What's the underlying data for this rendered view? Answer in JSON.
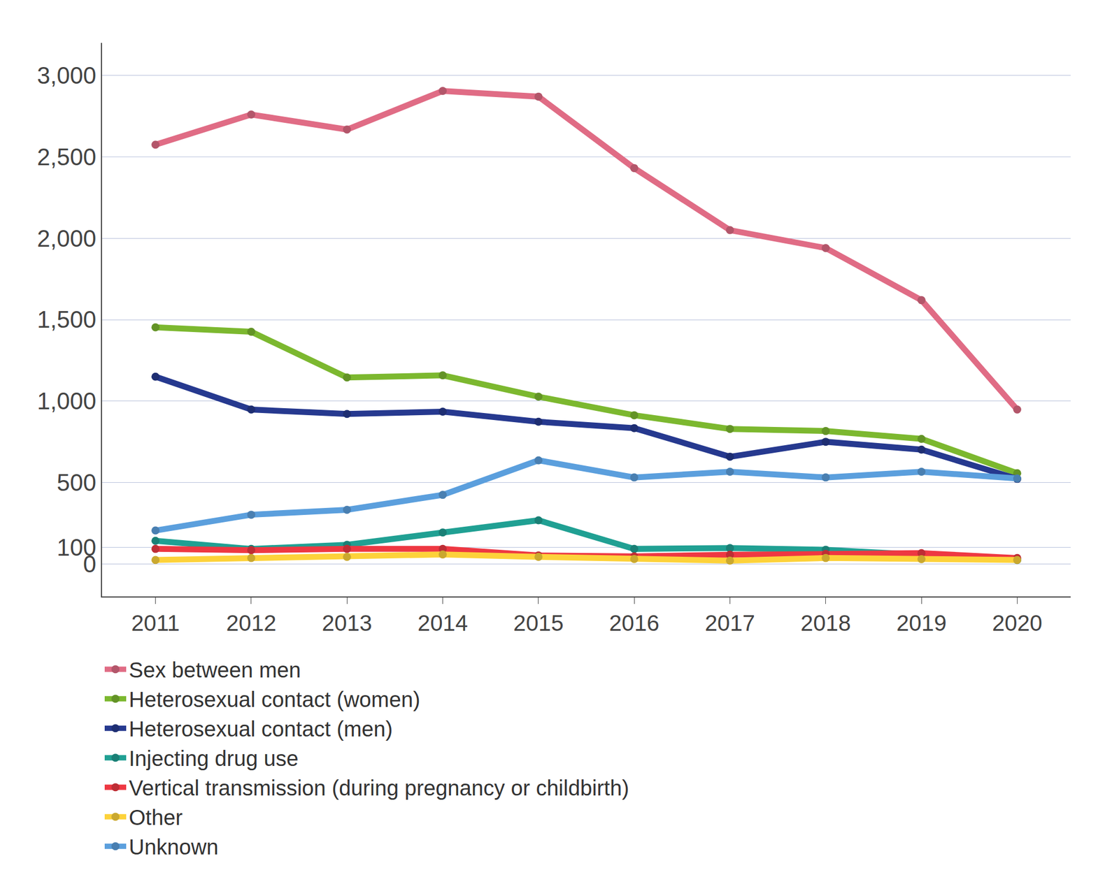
{
  "chart_data": {
    "type": "line",
    "categories": [
      "2011",
      "2012",
      "2013",
      "2014",
      "2015",
      "2016",
      "2017",
      "2018",
      "2019",
      "2020"
    ],
    "series": [
      {
        "name": "Sex between men",
        "color": "#e06c85",
        "values": [
          2575,
          2760,
          2668,
          2905,
          2870,
          2431,
          2050,
          1940,
          1620,
          948
        ]
      },
      {
        "name": "Heterosexual contact (women)",
        "color": "#7cb82f",
        "values": [
          1453,
          1426,
          1145,
          1158,
          1027,
          913,
          829,
          816,
          768,
          557
        ]
      },
      {
        "name": "Heterosexual contact (men)",
        "color": "#26398f",
        "values": [
          1150,
          948,
          921,
          935,
          873,
          834,
          658,
          750,
          702,
          522
        ]
      },
      {
        "name": "Injecting drug use",
        "color": "#20a093",
        "values": [
          142,
          92,
          117,
          193,
          268,
          92,
          97,
          87,
          58,
          24
        ]
      },
      {
        "name": "Vertical transmission (during pregnancy or childbirth)",
        "color": "#ee3842",
        "values": [
          92,
          84,
          92,
          92,
          52,
          46,
          56,
          61,
          66,
          36
        ]
      },
      {
        "name": "Other",
        "color": "#fdd23a",
        "values": [
          24,
          36,
          43,
          58,
          43,
          30,
          20,
          36,
          29,
          24
        ]
      },
      {
        "name": "Unknown",
        "color": "#5b9fdd",
        "values": [
          205,
          302,
          332,
          424,
          636,
          531,
          566,
          531,
          566,
          525
        ]
      }
    ],
    "ylim": [
      -200,
      3200
    ],
    "yticks": [
      0,
      100,
      500,
      {
        "value": 1000,
        "label": "1,000"
      },
      {
        "value": 1500,
        "label": "1,500"
      },
      {
        "value": 2000,
        "label": "2,000"
      },
      {
        "value": 2500,
        "label": "2,500"
      },
      {
        "value": 3000,
        "label": "3,000"
      }
    ],
    "grid": true,
    "legend": "bottom",
    "marker": "circle"
  }
}
